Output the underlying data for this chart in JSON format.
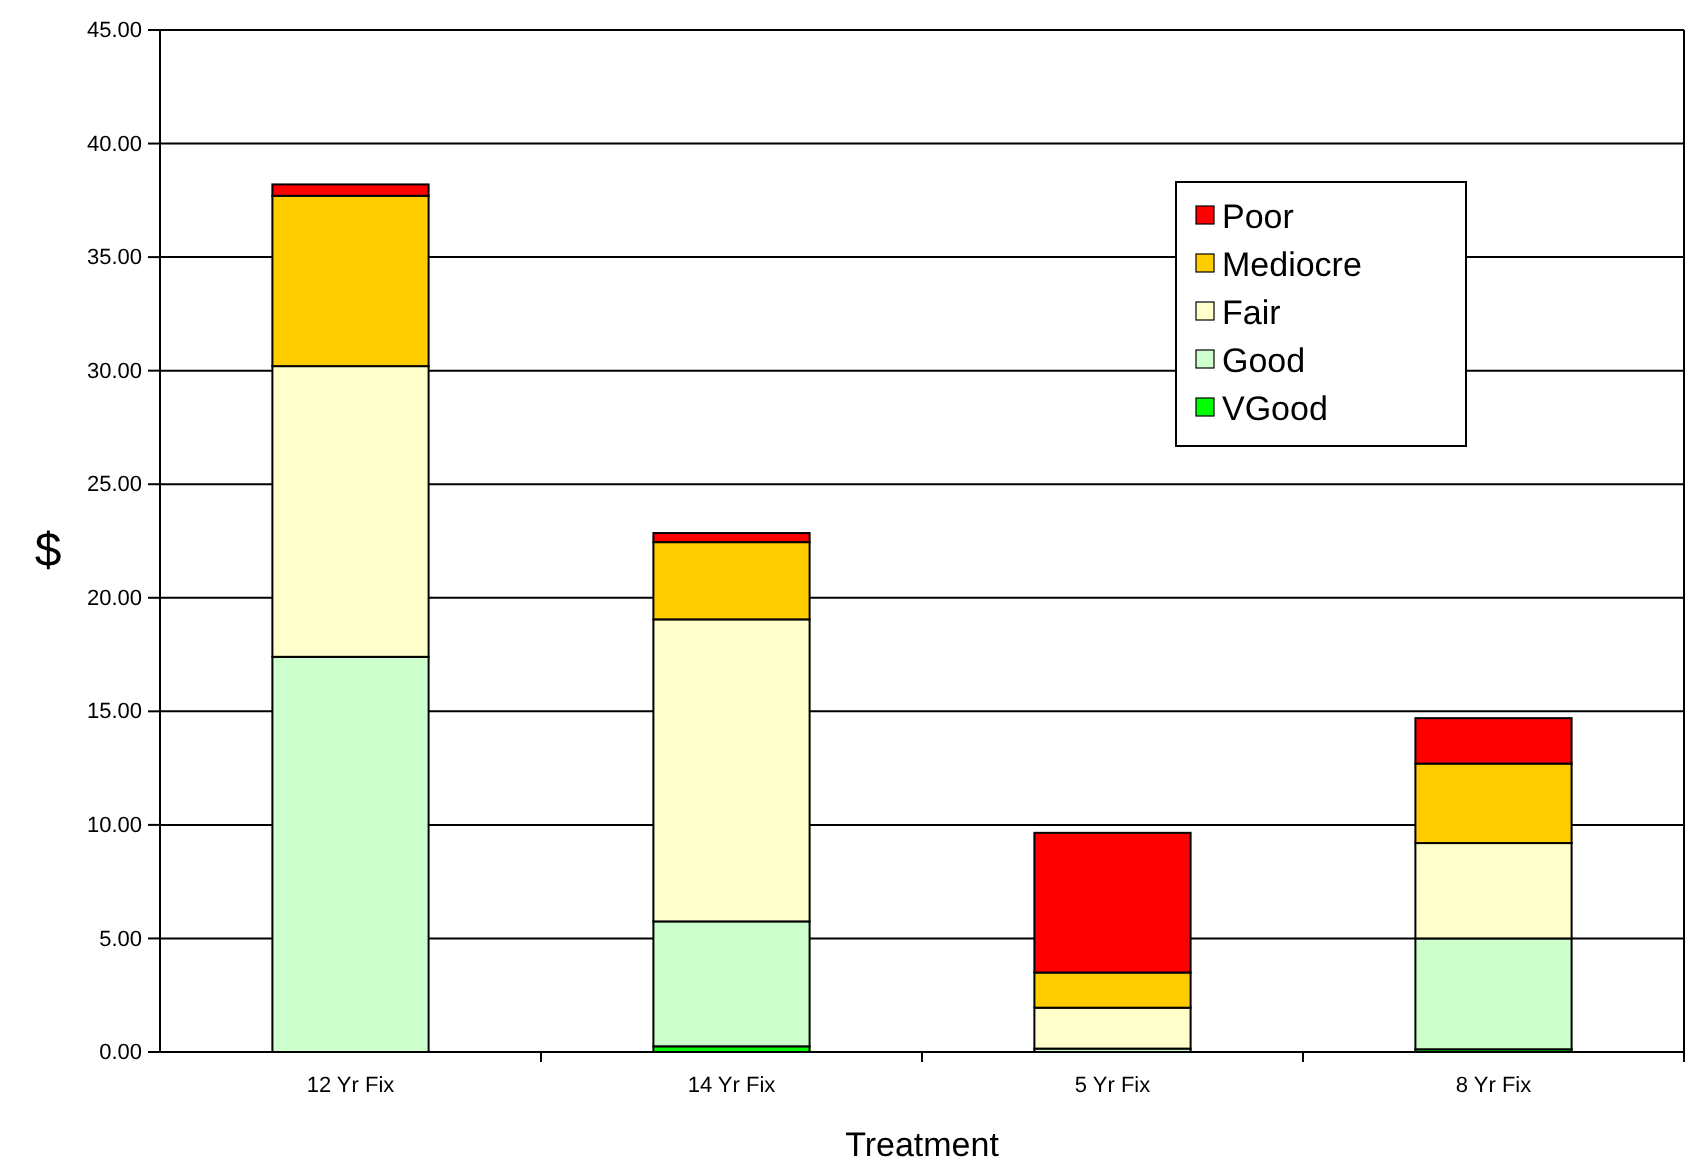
{
  "chart_data": {
    "type": "bar",
    "xlabel": "Treatment",
    "ylabel": "$",
    "categories": [
      "12 Yr Fix",
      "14 Yr Fix",
      "5 Yr Fix",
      "8 Yr Fix"
    ],
    "stacked": true,
    "series": [
      {
        "name": "VGood",
        "color": "#00ff00",
        "values": [
          0,
          0.25,
          0,
          0.12
        ]
      },
      {
        "name": "Good",
        "color": "#ccffcc",
        "values": [
          17.4,
          5.5,
          0.15,
          4.88
        ]
      },
      {
        "name": "Fair",
        "color": "#ffffcc",
        "values": [
          12.8,
          13.3,
          1.8,
          4.2
        ]
      },
      {
        "name": "Mediocre",
        "color": "#ffcc00",
        "values": [
          7.5,
          3.4,
          1.55,
          3.5
        ]
      },
      {
        "name": "Poor",
        "color": "#ff0000",
        "values": [
          0.5,
          0.4,
          6.15,
          2.0
        ]
      }
    ],
    "ylim": [
      0,
      45
    ],
    "yticks": [
      {
        "value": 0,
        "label": "0.00"
      },
      {
        "value": 5,
        "label": "5.00"
      },
      {
        "value": 10,
        "label": "10.00"
      },
      {
        "value": 15,
        "label": "15.00"
      },
      {
        "value": 20,
        "label": "20.00"
      },
      {
        "value": 25,
        "label": "25.00"
      },
      {
        "value": 30,
        "label": "30.00"
      },
      {
        "value": 35,
        "label": "35.00"
      },
      {
        "value": 40,
        "label": "40.00"
      },
      {
        "value": 45,
        "label": "45.00"
      }
    ],
    "grid": "y",
    "legend": "top right"
  }
}
